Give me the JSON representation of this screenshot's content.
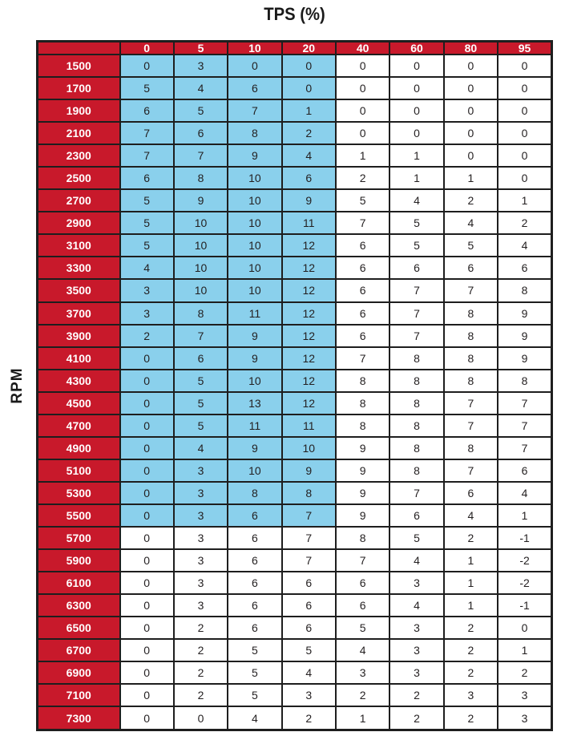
{
  "title": "TPS (%)",
  "y_axis_label": "RPM",
  "colors": {
    "header_red": "#C8192B",
    "highlight_blue": "#8AD0EC",
    "border_black": "#1E1E1E",
    "cell_text": "#231F20",
    "header_text": "#FFFFFF"
  },
  "chart_data": {
    "type": "table",
    "title": "TPS (%)",
    "x_axis_label": "TPS (%)",
    "y_axis_label": "RPM",
    "columns": [
      "0",
      "5",
      "10",
      "20",
      "40",
      "60",
      "80",
      "95"
    ],
    "rows": [
      {
        "rpm": "1500",
        "values": [
          0,
          3,
          0,
          0,
          0,
          0,
          0,
          0
        ]
      },
      {
        "rpm": "1700",
        "values": [
          5,
          4,
          6,
          0,
          0,
          0,
          0,
          0
        ]
      },
      {
        "rpm": "1900",
        "values": [
          6,
          5,
          7,
          1,
          0,
          0,
          0,
          0
        ]
      },
      {
        "rpm": "2100",
        "values": [
          7,
          6,
          8,
          2,
          0,
          0,
          0,
          0
        ]
      },
      {
        "rpm": "2300",
        "values": [
          7,
          7,
          9,
          4,
          1,
          1,
          0,
          0
        ]
      },
      {
        "rpm": "2500",
        "values": [
          6,
          8,
          10,
          6,
          2,
          1,
          1,
          0
        ]
      },
      {
        "rpm": "2700",
        "values": [
          5,
          9,
          10,
          9,
          5,
          4,
          2,
          1
        ]
      },
      {
        "rpm": "2900",
        "values": [
          5,
          10,
          10,
          11,
          7,
          5,
          4,
          2
        ]
      },
      {
        "rpm": "3100",
        "values": [
          5,
          10,
          10,
          12,
          6,
          5,
          5,
          4
        ]
      },
      {
        "rpm": "3300",
        "values": [
          4,
          10,
          10,
          12,
          6,
          6,
          6,
          6
        ]
      },
      {
        "rpm": "3500",
        "values": [
          3,
          10,
          10,
          12,
          6,
          7,
          7,
          8
        ]
      },
      {
        "rpm": "3700",
        "values": [
          3,
          8,
          11,
          12,
          6,
          7,
          8,
          9
        ]
      },
      {
        "rpm": "3900",
        "values": [
          2,
          7,
          9,
          12,
          6,
          7,
          8,
          9
        ]
      },
      {
        "rpm": "4100",
        "values": [
          0,
          6,
          9,
          12,
          7,
          8,
          8,
          9
        ]
      },
      {
        "rpm": "4300",
        "values": [
          0,
          5,
          10,
          12,
          8,
          8,
          8,
          8
        ]
      },
      {
        "rpm": "4500",
        "values": [
          0,
          5,
          13,
          12,
          8,
          8,
          7,
          7
        ]
      },
      {
        "rpm": "4700",
        "values": [
          0,
          5,
          11,
          11,
          8,
          8,
          7,
          7
        ]
      },
      {
        "rpm": "4900",
        "values": [
          0,
          4,
          9,
          10,
          9,
          8,
          8,
          7
        ]
      },
      {
        "rpm": "5100",
        "values": [
          0,
          3,
          10,
          9,
          9,
          8,
          7,
          6
        ]
      },
      {
        "rpm": "5300",
        "values": [
          0,
          3,
          8,
          8,
          9,
          7,
          6,
          4
        ]
      },
      {
        "rpm": "5500",
        "values": [
          0,
          3,
          6,
          7,
          9,
          6,
          4,
          1
        ]
      },
      {
        "rpm": "5700",
        "values": [
          0,
          3,
          6,
          7,
          8,
          5,
          2,
          -1
        ]
      },
      {
        "rpm": "5900",
        "values": [
          0,
          3,
          6,
          7,
          7,
          4,
          1,
          -2
        ]
      },
      {
        "rpm": "6100",
        "values": [
          0,
          3,
          6,
          6,
          6,
          3,
          1,
          -2
        ]
      },
      {
        "rpm": "6300",
        "values": [
          0,
          3,
          6,
          6,
          6,
          4,
          1,
          -1
        ]
      },
      {
        "rpm": "6500",
        "values": [
          0,
          2,
          6,
          6,
          5,
          3,
          2,
          0
        ]
      },
      {
        "rpm": "6700",
        "values": [
          0,
          2,
          5,
          5,
          4,
          3,
          2,
          1
        ]
      },
      {
        "rpm": "6900",
        "values": [
          0,
          2,
          5,
          4,
          3,
          3,
          2,
          2
        ]
      },
      {
        "rpm": "7100",
        "values": [
          0,
          2,
          5,
          3,
          2,
          2,
          3,
          3
        ]
      },
      {
        "rpm": "7300",
        "values": [
          0,
          0,
          4,
          2,
          1,
          2,
          2,
          3
        ]
      }
    ],
    "highlight": {
      "description": "light blue highlighted cell region",
      "rpm_from": "1500",
      "rpm_to": "5500",
      "columns": [
        "0",
        "5",
        "10",
        "20"
      ],
      "color": "#8AD0EC"
    },
    "layout": {
      "grid": true,
      "header_position": "top-and-left"
    }
  }
}
